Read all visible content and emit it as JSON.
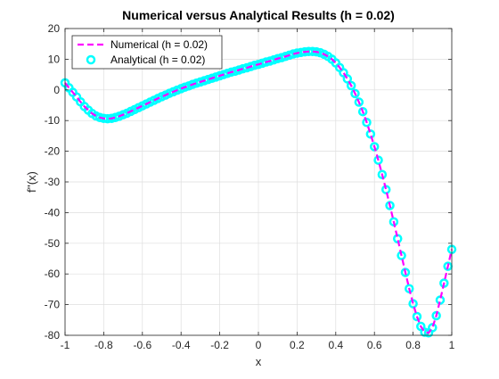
{
  "chart_data": {
    "type": "line",
    "title": "Numerical versus Analytical Results (h = 0.02)",
    "xlabel": "x",
    "ylabel": "f''(x)",
    "xlim": [
      -1,
      1
    ],
    "ylim": [
      -80,
      20
    ],
    "xticks": [
      "-1",
      "-0.8",
      "-0.6",
      "-0.4",
      "-0.2",
      "0",
      "0.2",
      "0.4",
      "0.6",
      "0.8",
      "1"
    ],
    "yticks": [
      "20",
      "10",
      "0",
      "-10",
      "-20",
      "-30",
      "-40",
      "-50",
      "-60",
      "-70",
      "-80"
    ],
    "grid": true,
    "legend_location": "top-left",
    "step": 0.02,
    "x": [
      -1.0,
      -0.98,
      -0.96,
      -0.94,
      -0.92,
      -0.9,
      -0.88,
      -0.86,
      -0.84,
      -0.82,
      -0.8,
      -0.78,
      -0.76,
      -0.74,
      -0.72,
      -0.7,
      -0.68,
      -0.66,
      -0.64,
      -0.62,
      -0.6,
      -0.58,
      -0.56,
      -0.54,
      -0.52,
      -0.5,
      -0.48,
      -0.46,
      -0.44,
      -0.42,
      -0.4,
      -0.38,
      -0.36,
      -0.34,
      -0.32,
      -0.3,
      -0.28,
      -0.26,
      -0.24,
      -0.22,
      -0.2,
      -0.18,
      -0.16,
      -0.14,
      -0.12,
      -0.1,
      -0.08,
      -0.06,
      -0.04,
      -0.02,
      0.0,
      0.02,
      0.04,
      0.06,
      0.08,
      0.1,
      0.12,
      0.14,
      0.16,
      0.18,
      0.2,
      0.22,
      0.24,
      0.26,
      0.28,
      0.3,
      0.32,
      0.34,
      0.36,
      0.38,
      0.4,
      0.42,
      0.44,
      0.46,
      0.48,
      0.5,
      0.52,
      0.54,
      0.56,
      0.58,
      0.6,
      0.62,
      0.64,
      0.66,
      0.68,
      0.7,
      0.72,
      0.74,
      0.76,
      0.78,
      0.8,
      0.82,
      0.84,
      0.86,
      0.88,
      0.9,
      0.92,
      0.94,
      0.96,
      0.98,
      1.0
    ],
    "series": [
      {
        "name": "Numerical (h = 0.02)",
        "color": "#ff00ff",
        "style": "dashed line",
        "values": [
          2.3,
          0.7,
          -0.8,
          -2.3,
          -3.9,
          -5.4,
          -6.6,
          -7.7,
          -8.5,
          -9.0,
          -9.3,
          -9.4,
          -9.3,
          -9.0,
          -8.6,
          -8.1,
          -7.6,
          -7.0,
          -6.4,
          -5.8,
          -5.2,
          -4.6,
          -4.0,
          -3.4,
          -2.8,
          -2.2,
          -1.7,
          -1.1,
          -0.6,
          -0.1,
          0.4,
          0.9,
          1.3,
          1.8,
          2.2,
          2.6,
          3.0,
          3.4,
          3.8,
          4.2,
          4.6,
          5.0,
          5.4,
          5.8,
          6.1,
          6.5,
          6.9,
          7.2,
          7.6,
          8.0,
          8.3,
          8.7,
          9.1,
          9.4,
          9.8,
          10.2,
          10.5,
          10.9,
          11.3,
          11.7,
          12.0,
          12.2,
          12.4,
          12.5,
          12.5,
          12.4,
          12.1,
          11.6,
          10.9,
          10.0,
          8.8,
          7.3,
          5.6,
          3.6,
          1.4,
          -1.2,
          -4.0,
          -7.1,
          -10.6,
          -14.4,
          -18.5,
          -22.9,
          -27.6,
          -32.5,
          -37.7,
          -43.0,
          -48.5,
          -54.0,
          -59.5,
          -64.8,
          -69.7,
          -73.9,
          -77.1,
          -79.0,
          -79.2,
          -77.5,
          -73.6,
          -68.5,
          -63.0,
          -57.5,
          -52.0
        ]
      },
      {
        "name": "Analytical (h = 0.02)",
        "color": "#00ffff",
        "style": "circle markers",
        "values": [
          2.3,
          0.7,
          -0.8,
          -2.3,
          -3.9,
          -5.4,
          -6.6,
          -7.7,
          -8.5,
          -9.0,
          -9.3,
          -9.4,
          -9.3,
          -9.0,
          -8.6,
          -8.1,
          -7.6,
          -7.0,
          -6.4,
          -5.8,
          -5.2,
          -4.6,
          -4.0,
          -3.4,
          -2.8,
          -2.2,
          -1.7,
          -1.1,
          -0.6,
          -0.1,
          0.4,
          0.9,
          1.3,
          1.8,
          2.2,
          2.6,
          3.0,
          3.4,
          3.8,
          4.2,
          4.6,
          5.0,
          5.4,
          5.8,
          6.1,
          6.5,
          6.9,
          7.2,
          7.6,
          8.0,
          8.3,
          8.7,
          9.1,
          9.4,
          9.8,
          10.2,
          10.5,
          10.9,
          11.3,
          11.7,
          12.0,
          12.2,
          12.4,
          12.5,
          12.5,
          12.4,
          12.1,
          11.6,
          10.9,
          10.0,
          8.8,
          7.3,
          5.6,
          3.6,
          1.4,
          -1.2,
          -4.0,
          -7.1,
          -10.6,
          -14.4,
          -18.5,
          -22.9,
          -27.6,
          -32.5,
          -37.7,
          -43.0,
          -48.5,
          -54.0,
          -59.5,
          -64.8,
          -69.7,
          -73.9,
          -77.1,
          -79.0,
          -79.2,
          -77.5,
          -73.6,
          -68.5,
          -63.0,
          -57.5,
          -52.0
        ]
      }
    ]
  }
}
